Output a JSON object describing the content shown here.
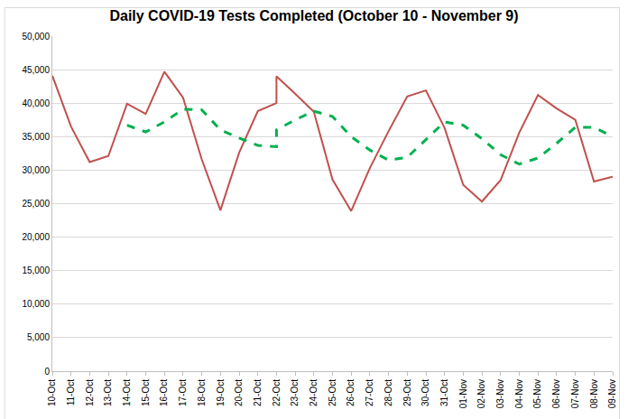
{
  "chart_data": {
    "type": "line",
    "title": "Daily COVID-19 Tests Completed (October 10 - November 9)",
    "categories": [
      "10-Oct",
      "11-Oct",
      "12-Oct",
      "13-Oct",
      "14-Oct",
      "15-Oct",
      "16-Oct",
      "17-Oct",
      "18-Oct",
      "19-Oct",
      "20-Oct",
      "21-Oct",
      "22-Oct",
      "22-Oct",
      "23-Oct",
      "24-Oct",
      "25-Oct",
      "26-Oct",
      "27-Oct",
      "28-Oct",
      "29-Oct",
      "30-Oct",
      "31-Oct",
      "01-Nov",
      "02-Nov",
      "03-Nov",
      "04-Nov",
      "05-Nov",
      "06-Nov",
      "07-Nov",
      "08-Nov",
      "09-Nov"
    ],
    "series": [
      {
        "color": "#c0504d",
        "line_style": "solid",
        "values": [
          44100,
          36500,
          31200,
          32100,
          39900,
          38400,
          44700,
          40800,
          31600,
          24000,
          32600,
          38800,
          40000,
          44000,
          41400,
          38700,
          28600,
          23900,
          30300,
          35800,
          41000,
          41900,
          36300,
          27800,
          25300,
          28500,
          35600,
          41200,
          39200,
          37500,
          28300,
          29000
        ]
      },
      {
        "color": "#00b050",
        "line_style": "dash",
        "values": [
          null,
          null,
          null,
          null,
          36700,
          35700,
          37200,
          39100,
          39000,
          36000,
          34800,
          33700,
          33500,
          36000,
          37500,
          38800,
          38000,
          35000,
          33000,
          31500,
          31900,
          34500,
          37200,
          36700,
          34700,
          32300,
          30900,
          31800,
          34000,
          36400,
          36400,
          35000
        ]
      }
    ],
    "ylim": [
      0,
      50000
    ],
    "yticks": [
      0,
      {
        "value": 5000,
        "label": "5,000"
      },
      {
        "value": 10000,
        "label": "10,000"
      },
      {
        "value": 15000,
        "label": "15,000"
      },
      {
        "value": 20000,
        "label": "20,000"
      },
      {
        "value": 25000,
        "label": "25,000"
      },
      {
        "value": 30000,
        "label": "30,000"
      },
      {
        "value": 35000,
        "label": "35,000"
      },
      {
        "value": 40000,
        "label": "40,000"
      },
      {
        "value": 45000,
        "label": "45,000"
      },
      {
        "value": 50000,
        "label": "50,000"
      }
    ],
    "grid": true
  }
}
